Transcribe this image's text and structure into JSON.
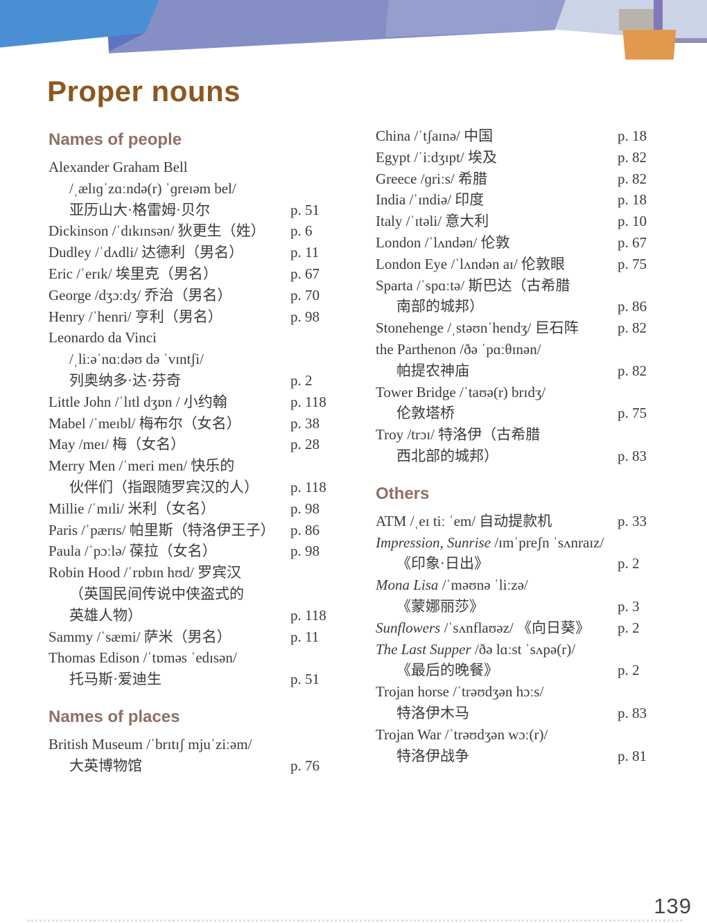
{
  "page": {
    "title": "Proper nouns",
    "page_number": "139"
  },
  "colors": {
    "title": "#8d571f",
    "section_header": "#8e7164",
    "body_text": "#3a3a3a",
    "banner_blue": "#4a8fd4",
    "banner_slate": "#7e89c2",
    "banner_light": "#cbd3e6",
    "banner_purple": "#8478b8",
    "banner_orange": "#e1994e",
    "banner_tan": "#b7b1a6"
  },
  "sections": [
    {
      "id": "names-of-people",
      "header": "Names of people",
      "column": "left",
      "entries": [
        {
          "lines": [
            {
              "segs": [
                {
                  "t": "Alexander Graham Bell"
                }
              ]
            },
            {
              "indent": true,
              "segs": [
                {
                  "t": "/ˌælɪɡˈzɑːndə(r) ˈɡreɪəm bel/"
                }
              ]
            },
            {
              "indent": true,
              "segs": [
                {
                  "t": "亚历山大·格雷姆·贝尔"
                }
              ],
              "page": "p. 51"
            }
          ]
        },
        {
          "lines": [
            {
              "segs": [
                {
                  "t": "Dickinson /ˈdɪkɪnsən/ 狄更生（姓）"
                }
              ],
              "page": "p. 6"
            }
          ]
        },
        {
          "lines": [
            {
              "segs": [
                {
                  "t": "Dudley /ˈdʌdli/ 达德利（男名）"
                }
              ],
              "page": "p. 11"
            }
          ]
        },
        {
          "lines": [
            {
              "segs": [
                {
                  "t": "Eric /ˈerɪk/ 埃里克（男名）"
                }
              ],
              "page": "p. 67"
            }
          ]
        },
        {
          "lines": [
            {
              "segs": [
                {
                  "t": "George /dʒɔːdʒ/ 乔治（男名）"
                }
              ],
              "page": "p. 70"
            }
          ]
        },
        {
          "lines": [
            {
              "segs": [
                {
                  "t": "Henry /ˈhenri/ 亨利（男名）"
                }
              ],
              "page": "p. 98"
            }
          ]
        },
        {
          "lines": [
            {
              "segs": [
                {
                  "t": "Leonardo da Vinci"
                }
              ]
            },
            {
              "indent": true,
              "segs": [
                {
                  "t": "/ˌliːəˈnɑːdəʊ də ˈvɪntʃi/"
                }
              ]
            },
            {
              "indent": true,
              "segs": [
                {
                  "t": "列奥纳多·达·芬奇"
                }
              ],
              "page": "p. 2"
            }
          ]
        },
        {
          "lines": [
            {
              "segs": [
                {
                  "t": "Little John /ˈlɪtl dʒɒn / 小约翰"
                }
              ],
              "page": "p. 118"
            }
          ]
        },
        {
          "lines": [
            {
              "segs": [
                {
                  "t": "Mabel /ˈmeɪbl/ 梅布尔（女名）"
                }
              ],
              "page": "p. 38"
            }
          ]
        },
        {
          "lines": [
            {
              "segs": [
                {
                  "t": "May /meɪ/ 梅（女名）"
                }
              ],
              "page": "p. 28"
            }
          ]
        },
        {
          "lines": [
            {
              "segs": [
                {
                  "t": "Merry Men /ˈmeri men/ 快乐的"
                }
              ]
            },
            {
              "indent": true,
              "segs": [
                {
                  "t": "伙伴们（指跟随罗宾汉的人）"
                }
              ],
              "page": "p. 118"
            }
          ]
        },
        {
          "lines": [
            {
              "segs": [
                {
                  "t": "Millie /ˈmɪli/ 米利（女名）"
                }
              ],
              "page": "p. 98"
            }
          ]
        },
        {
          "lines": [
            {
              "segs": [
                {
                  "t": "Paris /ˈpærɪs/ 帕里斯（特洛伊王子）"
                }
              ],
              "page": "p. 86"
            }
          ]
        },
        {
          "lines": [
            {
              "segs": [
                {
                  "t": "Paula /ˈpɔːlə/ 葆拉（女名）"
                }
              ],
              "page": "p. 98"
            }
          ]
        },
        {
          "lines": [
            {
              "segs": [
                {
                  "t": "Robin Hood /ˈrɒbɪn hʊd/ 罗宾汉"
                }
              ]
            },
            {
              "indent": true,
              "segs": [
                {
                  "t": "（英国民间传说中侠盗式的"
                }
              ]
            },
            {
              "indent": true,
              "segs": [
                {
                  "t": "英雄人物）"
                }
              ],
              "page": "p. 118"
            }
          ]
        },
        {
          "lines": [
            {
              "segs": [
                {
                  "t": "Sammy /ˈsæmi/ 萨米（男名）"
                }
              ],
              "page": "p. 11"
            }
          ]
        },
        {
          "lines": [
            {
              "segs": [
                {
                  "t": "Thomas Edison /ˈtɒməs ˈedɪsən/"
                }
              ]
            },
            {
              "indent": true,
              "segs": [
                {
                  "t": "托马斯·爱迪生"
                }
              ],
              "page": "p. 51"
            }
          ]
        }
      ]
    },
    {
      "id": "names-of-places",
      "header": "Names of places",
      "column": "left",
      "entries": [
        {
          "lines": [
            {
              "segs": [
                {
                  "t": "British Museum /ˈbrɪtɪʃ mjuˈziːəm/"
                }
              ]
            },
            {
              "indent": true,
              "segs": [
                {
                  "t": "大英博物馆"
                }
              ],
              "page": "p. 76"
            }
          ]
        }
      ]
    },
    {
      "id": "names-of-places-continued",
      "header": null,
      "column": "right",
      "entries": [
        {
          "lines": [
            {
              "segs": [
                {
                  "t": "China /ˈtʃaɪnə/ 中国"
                }
              ],
              "page": "p. 18"
            }
          ]
        },
        {
          "lines": [
            {
              "segs": [
                {
                  "t": "Egypt /ˈiːdʒɪpt/ 埃及"
                }
              ],
              "page": "p. 82"
            }
          ]
        },
        {
          "lines": [
            {
              "segs": [
                {
                  "t": "Greece /ɡriːs/ 希腊"
                }
              ],
              "page": "p. 82"
            }
          ]
        },
        {
          "lines": [
            {
              "segs": [
                {
                  "t": "India /ˈɪndiə/ 印度"
                }
              ],
              "page": "p. 18"
            }
          ]
        },
        {
          "lines": [
            {
              "segs": [
                {
                  "t": "Italy /ˈɪtəli/ 意大利"
                }
              ],
              "page": "p. 10"
            }
          ]
        },
        {
          "lines": [
            {
              "segs": [
                {
                  "t": "London /ˈlʌndən/ 伦敦"
                }
              ],
              "page": "p. 67"
            }
          ]
        },
        {
          "lines": [
            {
              "segs": [
                {
                  "t": "London Eye /ˈlʌndən aɪ/ 伦敦眼"
                }
              ],
              "page": "p. 75"
            }
          ]
        },
        {
          "lines": [
            {
              "segs": [
                {
                  "t": "Sparta /ˈspɑːtə/ 斯巴达（古希腊"
                }
              ]
            },
            {
              "indent": true,
              "segs": [
                {
                  "t": "南部的城邦）"
                }
              ],
              "page": "p. 86"
            }
          ]
        },
        {
          "lines": [
            {
              "segs": [
                {
                  "t": "Stonehenge /ˌstəʊnˈhendʒ/ 巨石阵"
                }
              ],
              "page": "p. 82"
            }
          ]
        },
        {
          "lines": [
            {
              "segs": [
                {
                  "t": "the Parthenon /ðə ˈpɑːθɪnən/"
                }
              ]
            },
            {
              "indent": true,
              "segs": [
                {
                  "t": "帕提农神庙"
                }
              ],
              "page": "p. 82"
            }
          ]
        },
        {
          "lines": [
            {
              "segs": [
                {
                  "t": "Tower Bridge /ˈtaʊə(r) brɪdʒ/"
                }
              ]
            },
            {
              "indent": true,
              "segs": [
                {
                  "t": "伦敦塔桥"
                }
              ],
              "page": "p. 75"
            }
          ]
        },
        {
          "lines": [
            {
              "segs": [
                {
                  "t": "Troy /trɔɪ/ 特洛伊（古希腊"
                }
              ]
            },
            {
              "indent": true,
              "segs": [
                {
                  "t": "西北部的城邦）"
                }
              ],
              "page": "p. 83"
            }
          ]
        }
      ]
    },
    {
      "id": "others",
      "header": "Others",
      "column": "right",
      "entries": [
        {
          "lines": [
            {
              "segs": [
                {
                  "t": "ATM /ˌeɪ tiː ˈem/ 自动提款机"
                }
              ],
              "page": "p. 33"
            }
          ]
        },
        {
          "lines": [
            {
              "segs": [
                {
                  "t": "Impression, Sunrise",
                  "i": true
                },
                {
                  "t": " /ɪmˈpreʃn ˈsʌnraɪz/"
                }
              ]
            },
            {
              "indent": true,
              "segs": [
                {
                  "t": "《印象·日出》"
                }
              ],
              "page": "p. 2"
            }
          ]
        },
        {
          "lines": [
            {
              "segs": [
                {
                  "t": "Mona Lisa",
                  "i": true
                },
                {
                  "t": " /ˈməʊnə ˈliːzə/"
                }
              ]
            },
            {
              "indent": true,
              "segs": [
                {
                  "t": "《蒙娜丽莎》"
                }
              ],
              "page": "p. 3"
            }
          ]
        },
        {
          "lines": [
            {
              "segs": [
                {
                  "t": "Sunflowers",
                  "i": true
                },
                {
                  "t": " /ˈsʌnflaʊəz/ 《向日葵》"
                }
              ],
              "page": "p. 2"
            }
          ]
        },
        {
          "lines": [
            {
              "segs": [
                {
                  "t": "The Last Supper",
                  "i": true
                },
                {
                  "t": " /ðə lɑːst ˈsʌpə(r)/"
                }
              ]
            },
            {
              "indent": true,
              "segs": [
                {
                  "t": "《最后的晚餐》"
                }
              ],
              "page": "p. 2"
            }
          ]
        },
        {
          "lines": [
            {
              "segs": [
                {
                  "t": "Trojan horse /ˈtrəʊdʒən hɔːs/"
                }
              ]
            },
            {
              "indent": true,
              "segs": [
                {
                  "t": "特洛伊木马"
                }
              ],
              "page": "p. 83"
            }
          ]
        },
        {
          "lines": [
            {
              "segs": [
                {
                  "t": "Trojan War /ˈtrəʊdʒən wɔː(r)/"
                }
              ]
            },
            {
              "indent": true,
              "segs": [
                {
                  "t": "特洛伊战争"
                }
              ],
              "page": "p. 81"
            }
          ]
        }
      ]
    }
  ]
}
